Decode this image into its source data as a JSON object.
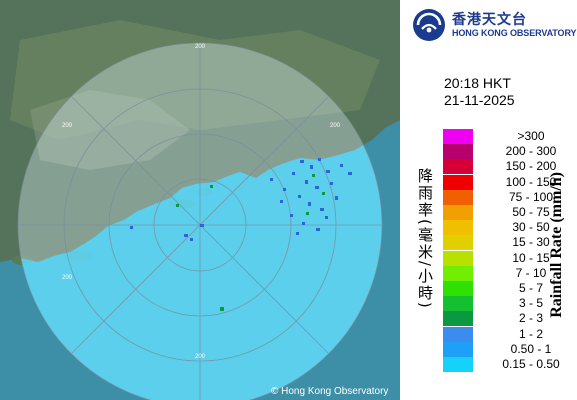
{
  "header": {
    "org_name_cn": "香港天文台",
    "org_name_en": "HONG KONG OBSERVATORY"
  },
  "timestamp": {
    "time": "20:18 HKT",
    "date": "21-11-2025"
  },
  "legend": {
    "title_cn": "降雨率(毫米/小時)",
    "title_en": "Rainfall Rate (mm/h)",
    "items": [
      {
        "label": ">300",
        "color": "#f000f0"
      },
      {
        "label": "200 - 300",
        "color": "#b8006c"
      },
      {
        "label": "150 - 200",
        "color": "#d60038"
      },
      {
        "label": "100 - 150",
        "color": "#ee0000"
      },
      {
        "label": "75 - 100",
        "color": "#f06000"
      },
      {
        "label": "50 - 75",
        "color": "#f0a000"
      },
      {
        "label": "30 - 50",
        "color": "#f0c000"
      },
      {
        "label": "15 - 30",
        "color": "#e0d000"
      },
      {
        "label": "10 - 15",
        "color": "#b8e000"
      },
      {
        "label": "7 - 10",
        "color": "#70f000"
      },
      {
        "label": "5 - 7",
        "color": "#30e000"
      },
      {
        "label": "3 - 5",
        "color": "#14c030"
      },
      {
        "label": "2 - 3",
        "color": "#0a9840"
      },
      {
        "label": "1 - 2",
        "color": "#3c8cf0"
      },
      {
        "label": "0.50 - 1",
        "color": "#1ea0f8"
      },
      {
        "label": "0.15 - 0.50",
        "color": "#14d2f8"
      }
    ]
  },
  "map": {
    "range_rings_km": [
      "200",
      "200",
      "200",
      "200",
      "200"
    ],
    "colors": {
      "sea": "#3aaecd",
      "land": "#55725a",
      "coverage": "#dff6ff",
      "rain_light": "#2a66d8",
      "rain_heavy": "#0a9840"
    }
  },
  "copyright": "© Hong Kong Observatory"
}
